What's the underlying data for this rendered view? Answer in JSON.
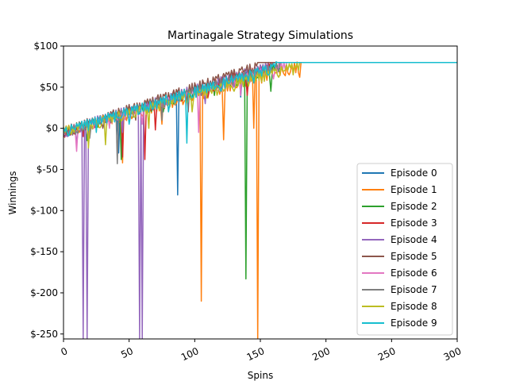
{
  "chart_data": {
    "type": "line",
    "title": "Martinagale Strategy Simulations",
    "xlabel": "Spins",
    "ylabel": "Winnings",
    "xlim": [
      0,
      300
    ],
    "ylim": [
      -256,
      100
    ],
    "xticks": [
      0,
      50,
      100,
      150,
      200,
      250,
      300
    ],
    "xtick_labels": [
      "0",
      "50",
      "100",
      "150",
      "200",
      "250",
      "300"
    ],
    "yticks": [
      100,
      50,
      0,
      -50,
      -100,
      -150,
      -200,
      -250
    ],
    "ytick_labels": [
      "$100",
      "$50",
      "$0",
      "$-50",
      "$-100",
      "$-150",
      "$-200",
      "$-250"
    ],
    "grid": false,
    "legend_position": "lower-right",
    "series": [
      {
        "name": "Episode 0",
        "color": "#1f77b4",
        "plateau_spin": 160,
        "dips": [
          [
            20,
            -8
          ],
          [
            42,
            -30
          ],
          [
            87,
            -81
          ],
          [
            110,
            42
          ],
          [
            135,
            38
          ],
          [
            152,
            65
          ]
        ]
      },
      {
        "name": "Episode 1",
        "color": "#ff7f0e",
        "plateau_spin": 181,
        "dips": [
          [
            12,
            -5
          ],
          [
            45,
            -42
          ],
          [
            75,
            5
          ],
          [
            105,
            -210
          ],
          [
            122,
            -14
          ],
          [
            145,
            0
          ],
          [
            148,
            -256
          ],
          [
            172,
            65
          ],
          [
            180,
            62
          ]
        ]
      },
      {
        "name": "Episode 2",
        "color": "#2ca02c",
        "plateau_spin": 166,
        "dips": [
          [
            18,
            -15
          ],
          [
            44,
            -38
          ],
          [
            76,
            20
          ],
          [
            115,
            40
          ],
          [
            139,
            -183
          ],
          [
            158,
            45
          ]
        ]
      },
      {
        "name": "Episode 3",
        "color": "#d62728",
        "plateau_spin": 160,
        "dips": [
          [
            15,
            -10
          ],
          [
            45,
            -35
          ],
          [
            62,
            -38
          ],
          [
            70,
            -2
          ],
          [
            95,
            20
          ],
          [
            110,
            38
          ],
          [
            140,
            40
          ]
        ]
      },
      {
        "name": "Episode 4",
        "color": "#9467bd",
        "plateau_spin": 157,
        "dips": [
          [
            10,
            -20
          ],
          [
            15,
            -256
          ],
          [
            18,
            -256
          ],
          [
            45,
            -5
          ],
          [
            58,
            -256
          ],
          [
            60,
            -256
          ],
          [
            108,
            30
          ],
          [
            130,
            50
          ]
        ]
      },
      {
        "name": "Episode 5",
        "color": "#8c564b",
        "plateau_spin": 148,
        "dips": [
          [
            8,
            -5
          ],
          [
            30,
            0
          ],
          [
            55,
            10
          ],
          [
            90,
            35
          ],
          [
            120,
            50
          ]
        ]
      },
      {
        "name": "Episode 6",
        "color": "#e377c2",
        "plateau_spin": 170,
        "dips": [
          [
            10,
            -28
          ],
          [
            35,
            0
          ],
          [
            60,
            5
          ],
          [
            103,
            -5
          ],
          [
            135,
            40
          ],
          [
            160,
            60
          ]
        ]
      },
      {
        "name": "Episode 7",
        "color": "#7f7f7f",
        "plateau_spin": 165,
        "dips": [
          [
            20,
            -12
          ],
          [
            41,
            -43
          ],
          [
            75,
            10
          ],
          [
            105,
            40
          ],
          [
            140,
            55
          ]
        ]
      },
      {
        "name": "Episode 8",
        "color": "#bcbd22",
        "plateau_spin": 180,
        "dips": [
          [
            19,
            -24
          ],
          [
            32,
            -20
          ],
          [
            65,
            0
          ],
          [
            98,
            20
          ],
          [
            130,
            45
          ],
          [
            175,
            65
          ]
        ]
      },
      {
        "name": "Episode 9",
        "color": "#17becf",
        "plateau_spin": 163,
        "dips": [
          [
            25,
            -5
          ],
          [
            50,
            5
          ],
          [
            80,
            20
          ],
          [
            94,
            -18
          ],
          [
            120,
            45
          ],
          [
            145,
            55
          ]
        ]
      }
    ],
    "plateau_value": 80
  }
}
